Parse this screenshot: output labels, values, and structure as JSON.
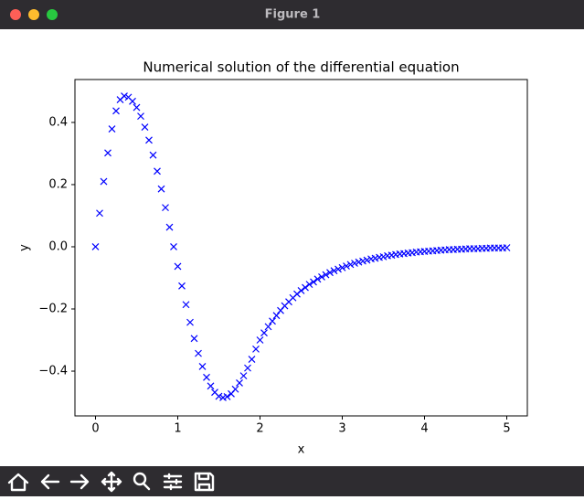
{
  "window_title": "Figure 1",
  "chart_data": {
    "type": "scatter",
    "title": "Numerical solution of the differential equation",
    "x_label": "x",
    "y_label": "y",
    "marker": "x",
    "color": "#0000ff",
    "x": [
      0,
      0.05,
      0.1,
      0.15,
      0.2,
      0.25,
      0.3,
      0.35,
      0.4,
      0.45,
      0.5,
      0.55,
      0.6,
      0.65,
      0.7,
      0.75,
      0.8,
      0.85,
      0.9,
      0.95,
      1,
      1.05,
      1.1,
      1.15,
      1.2,
      1.25,
      1.3,
      1.35,
      1.4,
      1.45,
      1.5,
      1.55,
      1.6,
      1.65,
      1.7,
      1.75,
      1.8,
      1.85,
      1.9,
      1.95,
      2,
      2.05,
      2.1,
      2.15,
      2.2,
      2.25,
      2.3,
      2.35,
      2.4,
      2.45,
      2.5,
      2.55,
      2.6,
      2.65,
      2.7,
      2.75,
      2.8,
      2.85,
      2.9,
      2.95,
      3,
      3.05,
      3.1,
      3.15,
      3.2,
      3.25,
      3.3,
      3.35,
      3.4,
      3.45,
      3.5,
      3.55,
      3.6,
      3.65,
      3.7,
      3.75,
      3.8,
      3.85,
      3.9,
      3.95,
      4,
      4.05,
      4.1,
      4.15,
      4.2,
      4.25,
      4.3,
      4.35,
      4.4,
      4.45,
      4.5,
      4.55,
      4.6,
      4.65,
      4.7,
      4.75,
      4.8,
      4.85,
      4.9,
      4.95,
      5
    ],
    "values": [
      0,
      0.108,
      0.21,
      0.302,
      0.379,
      0.437,
      0.473,
      0.485,
      0.481,
      0.468,
      0.448,
      0.42,
      0.385,
      0.343,
      0.295,
      0.243,
      0.186,
      0.126,
      0.063,
      0,
      -0.063,
      -0.126,
      -0.186,
      -0.243,
      -0.295,
      -0.343,
      -0.385,
      -0.42,
      -0.448,
      -0.468,
      -0.481,
      -0.485,
      -0.482,
      -0.473,
      -0.458,
      -0.438,
      -0.415,
      -0.39,
      -0.362,
      -0.329,
      -0.3,
      -0.277,
      -0.257,
      -0.239,
      -0.221,
      -0.205,
      -0.19,
      -0.177,
      -0.164,
      -0.152,
      -0.141,
      -0.131,
      -0.121,
      -0.113,
      -0.104,
      -0.097,
      -0.09,
      -0.083,
      -0.077,
      -0.072,
      -0.067,
      -0.062,
      -0.057,
      -0.053,
      -0.049,
      -0.046,
      -0.043,
      -0.039,
      -0.037,
      -0.034,
      -0.032,
      -0.029,
      -0.027,
      -0.025,
      -0.023,
      -0.022,
      -0.02,
      -0.019,
      -0.017,
      -0.016,
      -0.015,
      -0.014,
      -0.013,
      -0.012,
      -0.011,
      -0.01,
      -0.009,
      -0.009,
      -0.008,
      -0.008,
      -0.007,
      -0.006,
      -0.006,
      -0.006,
      -0.005,
      -0.005,
      -0.004,
      -0.004,
      -0.004,
      -0.004,
      -0.003
    ],
    "xlim": [
      -0.25,
      5.25
    ],
    "xticks": [
      0,
      1,
      2,
      3,
      4,
      5
    ],
    "ylim": [
      -0.544,
      0.538
    ],
    "yticks": [
      {
        "value": -0.4,
        "label": "−0.4"
      },
      {
        "value": -0.2,
        "label": "−0.2"
      },
      {
        "value": 0,
        "label": "0.0"
      },
      0.2,
      0.4
    ]
  }
}
